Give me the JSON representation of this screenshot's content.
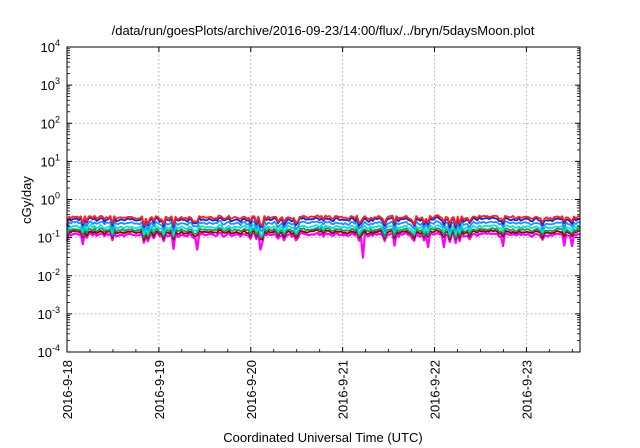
{
  "chart_data": {
    "type": "line",
    "title": "/data/run/goesPlots/archive/2016-09-23/14:00/flux/../bryn/5daysMoon.plot",
    "xlabel": "Coordinated Universal Time (UTC)",
    "ylabel": "cGy/day",
    "yscale": "log",
    "ylim_exponents": [
      -4,
      4
    ],
    "y_ticks": [
      {
        "base": "10",
        "exp": "-4",
        "value": 0.0001
      },
      {
        "base": "10",
        "exp": "-3",
        "value": 0.001
      },
      {
        "base": "10",
        "exp": "-2",
        "value": 0.01
      },
      {
        "base": "10",
        "exp": "-1",
        "value": 0.1
      },
      {
        "base": "10",
        "exp": "0",
        "value": 1
      },
      {
        "base": "10",
        "exp": "1",
        "value": 10
      },
      {
        "base": "10",
        "exp": "2",
        "value": 100
      },
      {
        "base": "10",
        "exp": "3",
        "value": 1000
      },
      {
        "base": "10",
        "exp": "4",
        "value": 10000
      }
    ],
    "x_ticks": [
      "2016-9-18",
      "2016-9-19",
      "2016-9-20",
      "2016-9-21",
      "2016-9-22",
      "2016-9-23"
    ],
    "xlim": [
      "2016-09-18 00:00",
      "2016-09-23 14:00"
    ],
    "grid": true,
    "series": [
      {
        "color": "#ff00ff",
        "typical_value": 0.12,
        "dips_to": 0.03
      },
      {
        "color": "#8b0000",
        "typical_value": 0.14
      },
      {
        "color": "#2e8b57",
        "typical_value": 0.16
      },
      {
        "color": "#00e5cc",
        "typical_value": 0.19
      },
      {
        "color": "#1e90ff",
        "typical_value": 0.24
      },
      {
        "color": "#2020c0",
        "typical_value": 0.3
      },
      {
        "color": "#ff2020",
        "typical_value": 0.34
      }
    ]
  }
}
